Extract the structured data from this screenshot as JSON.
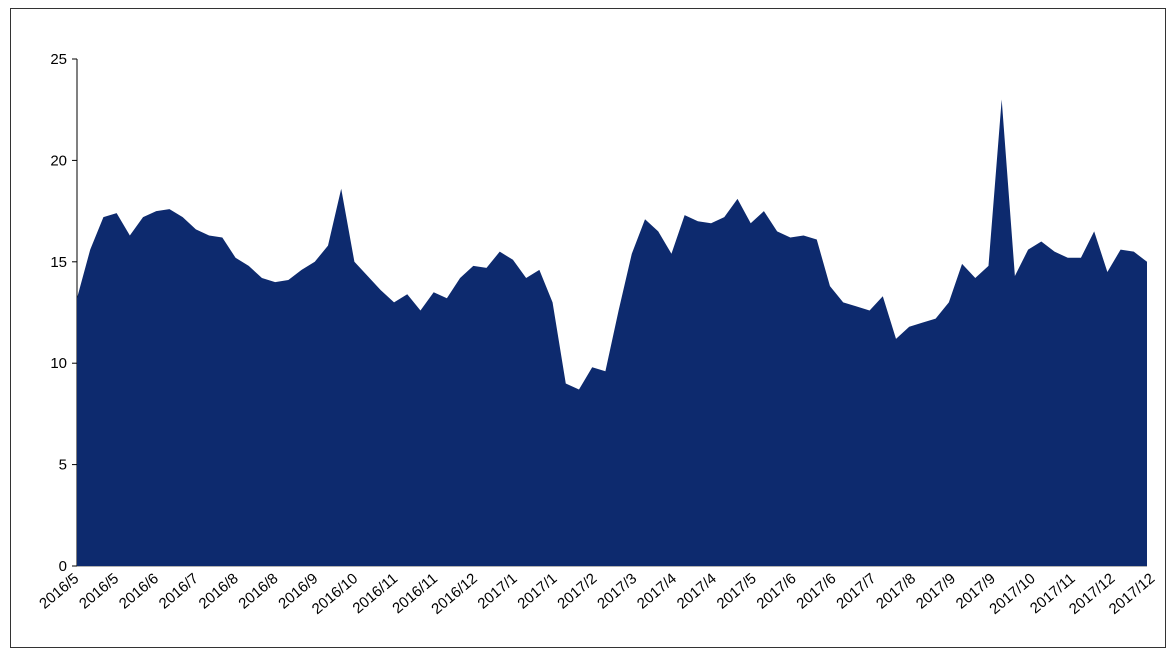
{
  "chart_data": {
    "type": "area",
    "title": "",
    "xlabel": "",
    "ylabel": "",
    "ylim": [
      0,
      25
    ],
    "yticks": [
      0,
      5,
      10,
      15,
      20,
      25
    ],
    "grid": false,
    "legend": "none",
    "fill_color": "#0d2a6e",
    "x_tick_labels": [
      "2016/5",
      "2016/5",
      "2016/6",
      "2016/7",
      "2016/8",
      "2016/8",
      "2016/9",
      "2016/10",
      "2016/11",
      "2016/11",
      "2016/12",
      "2017/1",
      "2017/1",
      "2017/2",
      "2017/3",
      "2017/4",
      "2017/4",
      "2017/5",
      "2017/6",
      "2017/6",
      "2017/7",
      "2017/8",
      "2017/9",
      "2017/9",
      "2017/10",
      "2017/11",
      "2017/12",
      "2017/12"
    ],
    "values": [
      13.2,
      15.6,
      17.2,
      17.4,
      16.3,
      17.2,
      17.5,
      17.6,
      17.2,
      16.6,
      16.3,
      16.2,
      15.2,
      14.8,
      14.2,
      14.0,
      14.1,
      14.6,
      15.0,
      15.8,
      18.6,
      15.0,
      14.3,
      13.6,
      13.0,
      13.4,
      12.6,
      13.5,
      13.2,
      14.2,
      14.8,
      14.7,
      15.5,
      15.1,
      14.2,
      14.6,
      13.0,
      9.0,
      8.7,
      9.8,
      9.6,
      12.6,
      15.4,
      17.1,
      16.5,
      15.4,
      17.3,
      17.0,
      16.9,
      17.2,
      18.1,
      16.9,
      17.5,
      16.5,
      16.2,
      16.3,
      16.1,
      13.8,
      13.0,
      12.8,
      12.6,
      13.3,
      11.2,
      11.8,
      12.0,
      12.2,
      13.0,
      14.9,
      14.2,
      14.8,
      23.0,
      14.3,
      15.6,
      16.0,
      15.5,
      15.2,
      15.2,
      16.5,
      14.5,
      15.6,
      15.5,
      15.0
    ]
  }
}
